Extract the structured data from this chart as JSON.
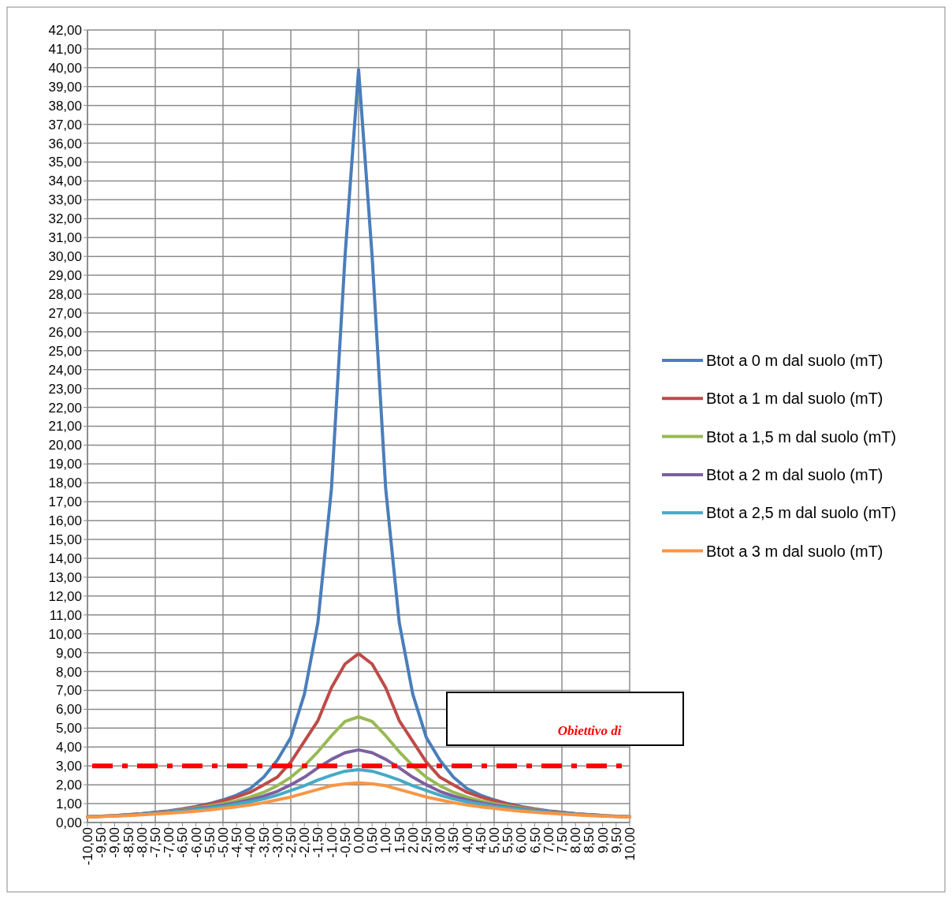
{
  "chart_data": {
    "type": "line",
    "categories": [
      "-10,00",
      "-9,50",
      "-9,00",
      "-8,50",
      "-8,00",
      "-7,50",
      "-7,00",
      "-6,50",
      "-6,00",
      "-5,50",
      "-5,00",
      "-4,50",
      "-4,00",
      "-3,50",
      "-3,00",
      "-2,50",
      "-2,00",
      "-1,50",
      "-1,00",
      "-0,50",
      "0,00",
      "0,50",
      "1,00",
      "1,50",
      "2,00",
      "2,50",
      "3,00",
      "3,50",
      "4,00",
      "4,50",
      "5,00",
      "5,50",
      "6,00",
      "6,50",
      "7,00",
      "7,50",
      "8,00",
      "8,50",
      "9,00",
      "9,50",
      "10,00"
    ],
    "series": [
      {
        "name": "Btot a 0 m dal suolo (mT)",
        "color": "#4a7ebb",
        "values": [
          null,
          null,
          0.37,
          0.42,
          0.47,
          0.54,
          0.62,
          0.72,
          0.85,
          1.0,
          1.2,
          1.45,
          1.8,
          2.4,
          3.3,
          4.5,
          6.8,
          10.6,
          17.7,
          30,
          39.9,
          30,
          17.7,
          10.6,
          6.8,
          4.5,
          3.3,
          2.4,
          1.8,
          1.45,
          1.2,
          1.0,
          0.85,
          0.72,
          0.62,
          0.54,
          0.47,
          0.42,
          0.37,
          null,
          null
        ]
      },
      {
        "name": "Btot a 1 m dal suolo (mT)",
        "color": "#be4b48",
        "values": [
          0.3,
          0.33,
          0.37,
          0.41,
          0.46,
          0.53,
          0.6,
          0.7,
          0.82,
          0.97,
          1.15,
          1.35,
          1.6,
          2.0,
          2.4,
          3.2,
          4.3,
          5.4,
          7.15,
          8.4,
          8.95,
          8.4,
          7.15,
          5.4,
          4.3,
          3.2,
          2.4,
          2.0,
          1.6,
          1.35,
          1.15,
          0.97,
          0.82,
          0.7,
          0.6,
          0.53,
          0.46,
          0.41,
          0.37,
          0.33,
          0.3
        ]
      },
      {
        "name": "Btot a 1,5 m dal suolo (mT)",
        "color": "#98b954",
        "values": [
          0.3,
          0.33,
          0.36,
          0.4,
          0.45,
          0.51,
          0.58,
          0.67,
          0.77,
          0.88,
          1.0,
          1.15,
          1.35,
          1.6,
          1.95,
          2.4,
          3.0,
          3.75,
          4.6,
          5.35,
          5.6,
          5.35,
          4.6,
          3.75,
          3.0,
          2.4,
          1.95,
          1.6,
          1.35,
          1.15,
          1.0,
          0.88,
          0.77,
          0.67,
          0.58,
          0.51,
          0.45,
          0.4,
          0.36,
          0.33,
          0.3
        ]
      },
      {
        "name": "Btot a 2 m dal suolo (mT)",
        "color": "#7d60a0",
        "values": [
          0.3,
          0.32,
          0.36,
          0.4,
          0.44,
          0.5,
          0.56,
          0.64,
          0.73,
          0.82,
          0.92,
          1.05,
          1.2,
          1.4,
          1.65,
          2.0,
          2.4,
          2.9,
          3.35,
          3.7,
          3.85,
          3.7,
          3.35,
          2.9,
          2.4,
          2.0,
          1.65,
          1.4,
          1.2,
          1.05,
          0.92,
          0.82,
          0.73,
          0.64,
          0.56,
          0.5,
          0.44,
          0.4,
          0.36,
          0.32,
          0.3
        ]
      },
      {
        "name": "Btot a 2,5 m dal suolo (mT)",
        "color": "#46aac5",
        "values": [
          null,
          null,
          0.35,
          0.39,
          0.43,
          0.48,
          0.54,
          0.61,
          0.69,
          0.77,
          0.85,
          0.97,
          1.1,
          1.25,
          1.45,
          1.7,
          1.95,
          2.25,
          2.5,
          2.72,
          2.8,
          2.72,
          2.5,
          2.25,
          1.95,
          1.7,
          1.45,
          1.25,
          1.1,
          0.97,
          0.85,
          0.77,
          0.69,
          0.61,
          0.54,
          0.48,
          0.43,
          0.39,
          0.35,
          null,
          null
        ]
      },
      {
        "name": "Btot a 3 m dal suolo (mT)",
        "color": "#f79646",
        "values": [
          0.29,
          0.31,
          0.34,
          0.37,
          0.41,
          0.45,
          0.49,
          0.54,
          0.6,
          0.67,
          0.75,
          0.83,
          0.93,
          1.05,
          1.2,
          1.35,
          1.55,
          1.75,
          1.95,
          2.05,
          2.1,
          2.05,
          1.95,
          1.75,
          1.55,
          1.35,
          1.2,
          1.05,
          0.93,
          0.83,
          0.75,
          0.67,
          0.6,
          0.54,
          0.49,
          0.45,
          0.41,
          0.37,
          0.34,
          0.31,
          0.29
        ]
      }
    ],
    "ylim": [
      0,
      42
    ],
    "yticks": [
      {
        "value": 0,
        "label": "0,00"
      },
      {
        "value": 1,
        "label": "1,00"
      },
      {
        "value": 2,
        "label": "2,00"
      },
      {
        "value": 3,
        "label": "3,00"
      },
      {
        "value": 4,
        "label": "4,00"
      },
      {
        "value": 5,
        "label": "5,00"
      },
      {
        "value": 6,
        "label": "6,00"
      },
      {
        "value": 7,
        "label": "7,00"
      },
      {
        "value": 8,
        "label": "8,00"
      },
      {
        "value": 9,
        "label": "9,00"
      },
      {
        "value": 10,
        "label": "10,00"
      },
      {
        "value": 11,
        "label": "11,00"
      },
      {
        "value": 12,
        "label": "12,00"
      },
      {
        "value": 13,
        "label": "13,00"
      },
      {
        "value": 14,
        "label": "14,00"
      },
      {
        "value": 15,
        "label": "15,00"
      },
      {
        "value": 16,
        "label": "16,00"
      },
      {
        "value": 17,
        "label": "17,00"
      },
      {
        "value": 18,
        "label": "18,00"
      },
      {
        "value": 19,
        "label": "19,00"
      },
      {
        "value": 20,
        "label": "20,00"
      },
      {
        "value": 21,
        "label": "21,00"
      },
      {
        "value": 22,
        "label": "22,00"
      },
      {
        "value": 23,
        "label": "23,00"
      },
      {
        "value": 24,
        "label": "24,00"
      },
      {
        "value": 25,
        "label": "25,00"
      },
      {
        "value": 26,
        "label": "26,00"
      },
      {
        "value": 27,
        "label": "27,00"
      },
      {
        "value": 28,
        "label": "28,00"
      },
      {
        "value": 29,
        "label": "29,00"
      },
      {
        "value": 30,
        "label": "30,00"
      },
      {
        "value": 31,
        "label": "31,00"
      },
      {
        "value": 32,
        "label": "32,00"
      },
      {
        "value": 33,
        "label": "33,00"
      },
      {
        "value": 34,
        "label": "34,00"
      },
      {
        "value": 35,
        "label": "35,00"
      },
      {
        "value": 36,
        "label": "36,00"
      },
      {
        "value": 37,
        "label": "37,00"
      },
      {
        "value": 38,
        "label": "38,00"
      },
      {
        "value": 39,
        "label": "39,00"
      },
      {
        "value": 40,
        "label": "40,00"
      },
      {
        "value": 41,
        "label": "41,00"
      },
      {
        "value": 42,
        "label": "42,00"
      }
    ],
    "ref_lines": [
      {
        "axis": "y",
        "value": 3,
        "color": "#ff0000",
        "line_style": "dashed"
      }
    ],
    "annotations": [
      "Obiettivo di"
    ],
    "grid": true,
    "legend": "right",
    "marker": "none",
    "line_style": "solid"
  }
}
